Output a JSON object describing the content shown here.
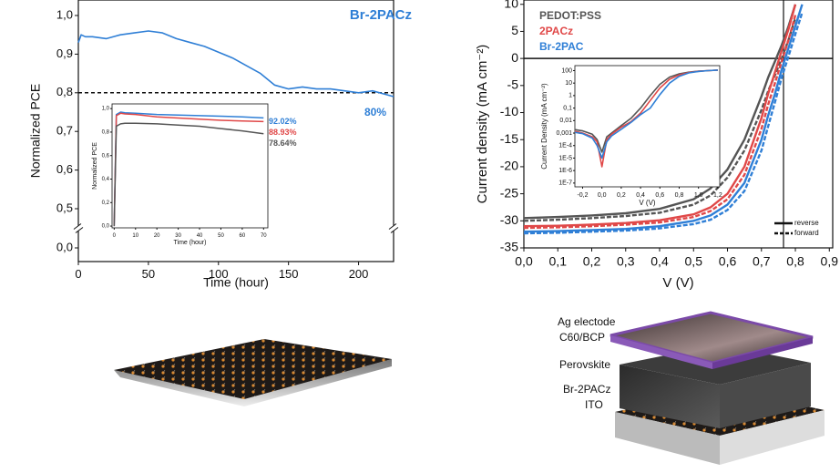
{
  "chart_data": [
    {
      "type": "line",
      "x_label": "Time (hour)",
      "y_label": "Normalized PCE",
      "xlim": [
        0,
        225
      ],
      "xticks": [
        0,
        50,
        100,
        150,
        200
      ],
      "ylim": [
        0,
        1.04
      ],
      "y_break": [
        0,
        0.5
      ],
      "yticks": [
        {
          "value": 0,
          "label": "0,0"
        },
        {
          "value": 0.5,
          "label": "0,5"
        },
        {
          "value": 0.6,
          "label": "0,6"
        },
        {
          "value": 0.7,
          "label": "0,7"
        },
        {
          "value": 0.8,
          "label": "0,8"
        },
        {
          "value": 0.9,
          "label": "0,9"
        },
        {
          "value": 1,
          "label": "1,0"
        }
      ],
      "x": [
        0,
        2,
        5,
        10,
        20,
        30,
        40,
        50,
        60,
        70,
        80,
        90,
        100,
        110,
        120,
        130,
        140,
        150,
        160,
        170,
        180,
        190,
        200,
        210,
        220,
        225
      ],
      "series": [
        {
          "name": "Br-2PACz",
          "color": "#2f7fd6",
          "values": [
            0.93,
            0.95,
            0.945,
            0.945,
            0.94,
            0.95,
            0.955,
            0.96,
            0.955,
            0.94,
            0.93,
            0.92,
            0.905,
            0.89,
            0.87,
            0.85,
            0.82,
            0.81,
            0.815,
            0.81,
            0.81,
            0.805,
            0.8,
            0.805,
            0.795,
            0.79
          ]
        }
      ],
      "reference_line": {
        "value": 0.8,
        "label": "80%"
      }
    },
    {
      "type": "line",
      "x_label": "Time (hour)",
      "y_label": "Normalized PCE",
      "xlim": [
        -1,
        72
      ],
      "xticks": [
        0,
        10,
        20,
        30,
        40,
        50,
        60,
        70
      ],
      "ylim": [
        -0.015,
        1.04
      ],
      "yticks": [
        {
          "value": 0,
          "label": "0,0"
        },
        {
          "value": 0.2,
          "label": "0,2"
        },
        {
          "value": 0.4,
          "label": "0,4"
        },
        {
          "value": 0.6,
          "label": "0,6"
        },
        {
          "value": 0.8,
          "label": "0,8"
        },
        {
          "value": 1,
          "label": "1,0"
        }
      ],
      "x": [
        0,
        1,
        3,
        5,
        10,
        20,
        30,
        40,
        50,
        60,
        70
      ],
      "series": [
        {
          "color": "#2f7fd6",
          "values": [
            0,
            0.95,
            0.97,
            0.965,
            0.96,
            0.95,
            0.945,
            0.94,
            0.935,
            0.93,
            0.9202
          ],
          "value_labels": [
            null,
            null,
            null,
            null,
            null,
            null,
            null,
            null,
            null,
            null,
            "92.02%"
          ]
        },
        {
          "color": "#e04848",
          "values": [
            0,
            0.94,
            0.96,
            0.955,
            0.95,
            0.93,
            0.92,
            0.91,
            0.9,
            0.895,
            0.8893
          ],
          "value_labels": [
            null,
            null,
            null,
            null,
            null,
            null,
            null,
            null,
            null,
            null,
            "88.93%"
          ]
        },
        {
          "color": "#555555",
          "values": [
            0,
            0.85,
            0.87,
            0.875,
            0.875,
            0.87,
            0.86,
            0.85,
            0.83,
            0.81,
            0.7864
          ],
          "value_labels": [
            null,
            null,
            null,
            null,
            null,
            null,
            null,
            null,
            null,
            null,
            "78.64%"
          ]
        }
      ]
    },
    {
      "type": "line",
      "x_label": "V (V)",
      "y_label": "Current density (mA cm⁻²)",
      "xlim": [
        0,
        0.91
      ],
      "xticks": [
        {
          "value": 0,
          "label": "0,0"
        },
        {
          "value": 0.1,
          "label": "0,1"
        },
        {
          "value": 0.2,
          "label": "0,2"
        },
        {
          "value": 0.3,
          "label": "0,3"
        },
        {
          "value": 0.4,
          "label": "0,4"
        },
        {
          "value": 0.5,
          "label": "0,5"
        },
        {
          "value": 0.6,
          "label": "0,6"
        },
        {
          "value": 0.7,
          "label": "0,7"
        },
        {
          "value": 0.8,
          "label": "0,8"
        },
        {
          "value": 0.9,
          "label": "0,9"
        }
      ],
      "ylim": [
        -35,
        10.8
      ],
      "yticks": [
        -35,
        -30,
        -25,
        -20,
        -15,
        -10,
        -5,
        0,
        5,
        10
      ],
      "hline": 0,
      "vline": 0.765,
      "line_styles": [
        {
          "label": "reverse",
          "dash": "solid"
        },
        {
          "label": "forward",
          "dash": "dashed"
        }
      ],
      "x": [
        0,
        0.1,
        0.2,
        0.3,
        0.4,
        0.5,
        0.55,
        0.6,
        0.65,
        0.7,
        0.72,
        0.74,
        0.76,
        0.78,
        0.8,
        0.82,
        0.84
      ],
      "series": [
        {
          "name": "PEDOT:PSS",
          "color": "#555555",
          "values": [
            -29.5,
            -29.3,
            -29,
            -28.6,
            -27.8,
            -26,
            -24,
            -20.5,
            -15,
            -7,
            -3.5,
            -0.5,
            2.5,
            6,
            10,
            null,
            null
          ],
          "forward_values": [
            -30,
            -29.8,
            -29.5,
            -29.1,
            -28.5,
            -27,
            -25.3,
            -22,
            -17,
            -9.5,
            -6,
            -3,
            0,
            3.5,
            7.5,
            null,
            null
          ]
        },
        {
          "name": "2PACz",
          "color": "#e04848",
          "values": [
            -31,
            -30.9,
            -30.7,
            -30.4,
            -29.9,
            -28.8,
            -27.5,
            -25,
            -20,
            -11,
            -6.5,
            -2.5,
            1.5,
            5.5,
            10,
            null,
            null
          ],
          "forward_values": [
            -31.3,
            -31.2,
            -31,
            -30.7,
            -30.3,
            -29.3,
            -28.2,
            -26,
            -21.5,
            -13,
            -8.5,
            -4.5,
            -0.5,
            3.5,
            8,
            null,
            null
          ]
        },
        {
          "name": "Br-2PAC",
          "color": "#2f7fd6",
          "values": [
            -32,
            -31.9,
            -31.7,
            -31.5,
            -31,
            -30,
            -29,
            -27,
            -23,
            -15,
            -10.5,
            -6.5,
            -2,
            2,
            6,
            10,
            null
          ],
          "forward_values": [
            -32.3,
            -32.2,
            -32,
            -31.8,
            -31.4,
            -30.6,
            -29.8,
            -28,
            -24.5,
            -17,
            -12.5,
            -8,
            -3.5,
            0.5,
            4.5,
            8.5,
            null
          ]
        }
      ]
    },
    {
      "type": "line",
      "x_label": "V (V)",
      "y_label": "Current Density (mA cm⁻²)",
      "xlim": [
        -0.28,
        1.22
      ],
      "xticks": [
        {
          "value": -0.2,
          "label": "-0,2"
        },
        {
          "value": 0,
          "label": "0,0"
        },
        {
          "value": 0.2,
          "label": "0,2"
        },
        {
          "value": 0.4,
          "label": "0,4"
        },
        {
          "value": 0.6,
          "label": "0,6"
        },
        {
          "value": 0.8,
          "label": "0,8"
        },
        {
          "value": 1,
          "label": "1,0"
        },
        {
          "value": 1.2,
          "label": "1,2"
        }
      ],
      "log_y": true,
      "ylim": [
        5e-08,
        250
      ],
      "yticks": [
        {
          "value": 1e-07,
          "label": "1E-7"
        },
        {
          "value": 1e-06,
          "label": "1E-6"
        },
        {
          "value": 1e-05,
          "label": "1E-5"
        },
        {
          "value": 0.0001,
          "label": "1E-4"
        },
        {
          "value": 0.001,
          "label": "0,001"
        },
        {
          "value": 0.01,
          "label": "0,01"
        },
        {
          "value": 0.1,
          "label": "0,1"
        },
        1,
        10,
        100
      ],
      "x": [
        -0.3,
        -0.2,
        -0.1,
        -0.05,
        0,
        0.05,
        0.1,
        0.2,
        0.3,
        0.4,
        0.5,
        0.6,
        0.7,
        0.8,
        0.9,
        1,
        1.1,
        1.2
      ],
      "series": [
        {
          "color": "#555555",
          "values": [
            0.002,
            0.0015,
            0.0008,
            0.0003,
            3e-05,
            0.0005,
            0.001,
            0.004,
            0.015,
            0.1,
            1,
            8,
            30,
            55,
            75,
            90,
            100,
            110
          ]
        },
        {
          "color": "#e04848",
          "values": [
            0.0015,
            0.001,
            0.0005,
            0.0002,
            2e-06,
            0.0003,
            0.0008,
            0.003,
            0.008,
            0.04,
            0.4,
            4,
            20,
            45,
            70,
            88,
            100,
            110
          ]
        },
        {
          "color": "#2f7fd6",
          "values": [
            0.0012,
            0.0009,
            0.0004,
            0.0001,
            1e-05,
            0.0002,
            0.0006,
            0.002,
            0.007,
            0.03,
            0.1,
            1.2,
            10,
            35,
            65,
            85,
            100,
            110
          ]
        }
      ]
    }
  ],
  "device_labels": [
    "Ag electode",
    "C60/BCP",
    "Perovskite",
    "Br-2PACz",
    "ITO"
  ]
}
